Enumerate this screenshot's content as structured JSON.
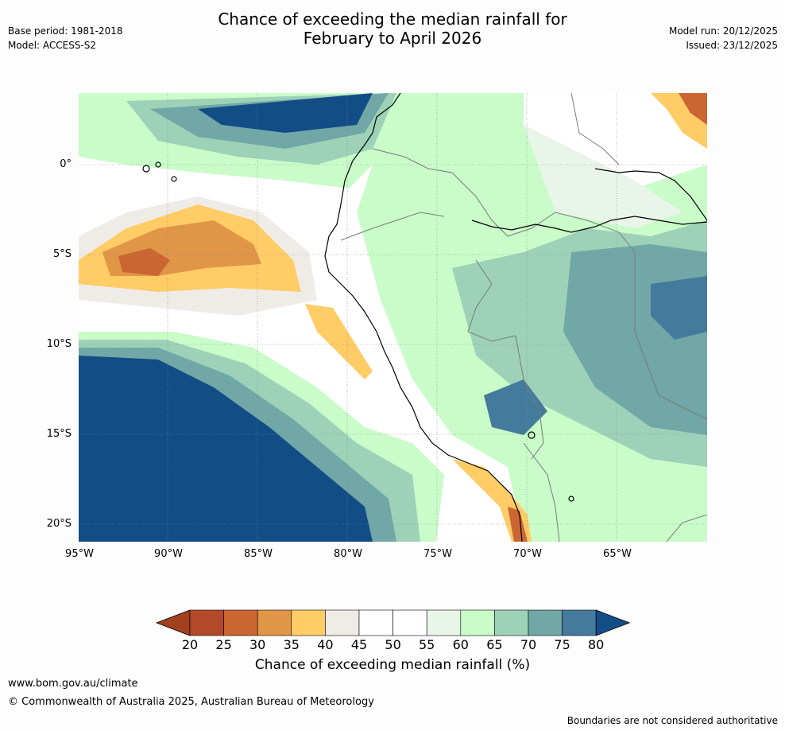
{
  "header": {
    "title_line1": "Chance of exceeding the median rainfall for",
    "title_line2": "February to April 2026",
    "base_period": "Base period: 1981-2018",
    "model": "Model: ACCESS-S2",
    "model_run": "Model run: 20/12/2025",
    "issued": "Issued: 23/12/2025"
  },
  "map": {
    "lat_labels": [
      "0°",
      "5°S",
      "10°S",
      "15°S",
      "20°S"
    ],
    "lon_labels": [
      "95°W",
      "90°W",
      "85°W",
      "80°W",
      "75°W",
      "70°W",
      "65°W"
    ],
    "extent": {
      "lon_min": -95,
      "lon_max": -60,
      "lat_min": -21,
      "lat_max": 4
    }
  },
  "legend": {
    "tick_labels": [
      "20",
      "25",
      "30",
      "35",
      "40",
      "45",
      "50",
      "55",
      "60",
      "65",
      "70",
      "75",
      "80"
    ],
    "colors": [
      "#a1411d",
      "#b4492a",
      "#cb6532",
      "#e09547",
      "#ffcc66",
      "#efece8",
      "#ffffff",
      "#ffffff",
      "#e9f5e9",
      "#c9fcc9",
      "#9dd2b8",
      "#71a7a6",
      "#447b9c",
      "#134d86"
    ],
    "title": "Chance of exceeding median rainfall (%)"
  },
  "footer": {
    "url": "www.bom.gov.au/climate",
    "copyright": "© Commonwealth of Australia 2025, Australian Bureau of Meteorology",
    "disclaimer": "Boundaries are not considered authoritative"
  }
}
